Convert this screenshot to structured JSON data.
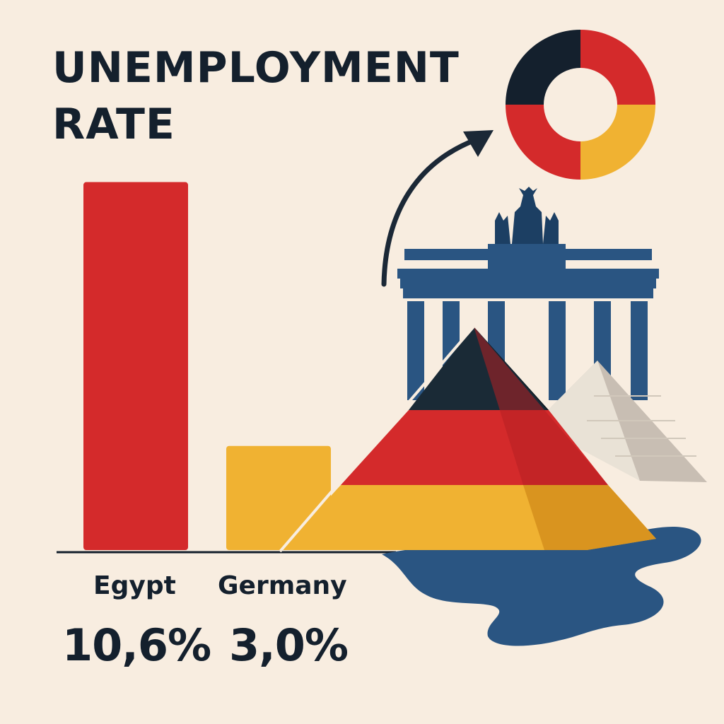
{
  "title": {
    "line1": "UNEMPLOYMENT",
    "line2": "RATE"
  },
  "colors": {
    "background": "#f8ede0",
    "text": "#14202d",
    "red": "#d42a2b",
    "gold": "#f0b232",
    "black": "#14202d",
    "blue": "#2a5582",
    "stone": "#e6ddd0"
  },
  "icons": [
    "donut-ring-icon",
    "curved-arrow-icon",
    "brandenburg-gate-icon",
    "pyramid-icon",
    "water-puddle-icon"
  ],
  "chart_data": {
    "type": "bar",
    "categories": [
      "Egypt",
      "Germany"
    ],
    "values": [
      10.6,
      3.0
    ],
    "value_labels": [
      "10,6%",
      "3,0%"
    ],
    "bar_colors": [
      "#d42a2b",
      "#f0b232"
    ],
    "title": "UNEMPLOYMENT RATE",
    "xlabel": "",
    "ylabel": "",
    "grid": false,
    "legend": "none"
  }
}
